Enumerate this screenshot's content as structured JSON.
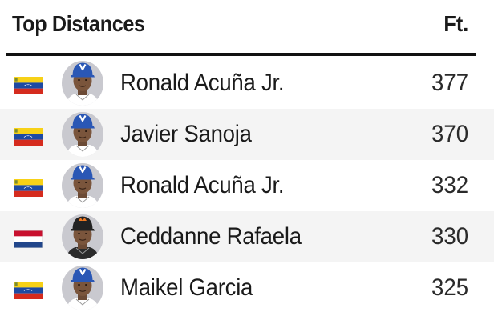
{
  "header": {
    "title": "Top Distances",
    "unit_label": "Ft."
  },
  "rows": [
    {
      "flag": "venezuela-flag",
      "cap": "blue",
      "name": "Ronald Acuña Jr.",
      "distance": "377"
    },
    {
      "flag": "venezuela-flag",
      "cap": "blue",
      "name": "Javier Sanoja",
      "distance": "370"
    },
    {
      "flag": "venezuela-flag",
      "cap": "blue",
      "name": "Ronald Acuña Jr.",
      "distance": "332"
    },
    {
      "flag": "netherlands-flag",
      "cap": "black",
      "name": "Ceddanne Rafaela",
      "distance": "330"
    },
    {
      "flag": "venezuela-flag",
      "cap": "blue",
      "name": "Maikel Garcia",
      "distance": "325"
    }
  ],
  "colors": {
    "venezuela_yellow": "#f7d117",
    "venezuela_blue": "#1d4aa3",
    "venezuela_red": "#d52b1e",
    "netherlands_red": "#c8102e",
    "netherlands_white": "#ffffff",
    "netherlands_blue": "#21468b",
    "cap_blue": "#2a57b5",
    "cap_black": "#222222",
    "cap_orange_logo": "#f07a22",
    "row_alt_bg": "#f4f4f4"
  }
}
